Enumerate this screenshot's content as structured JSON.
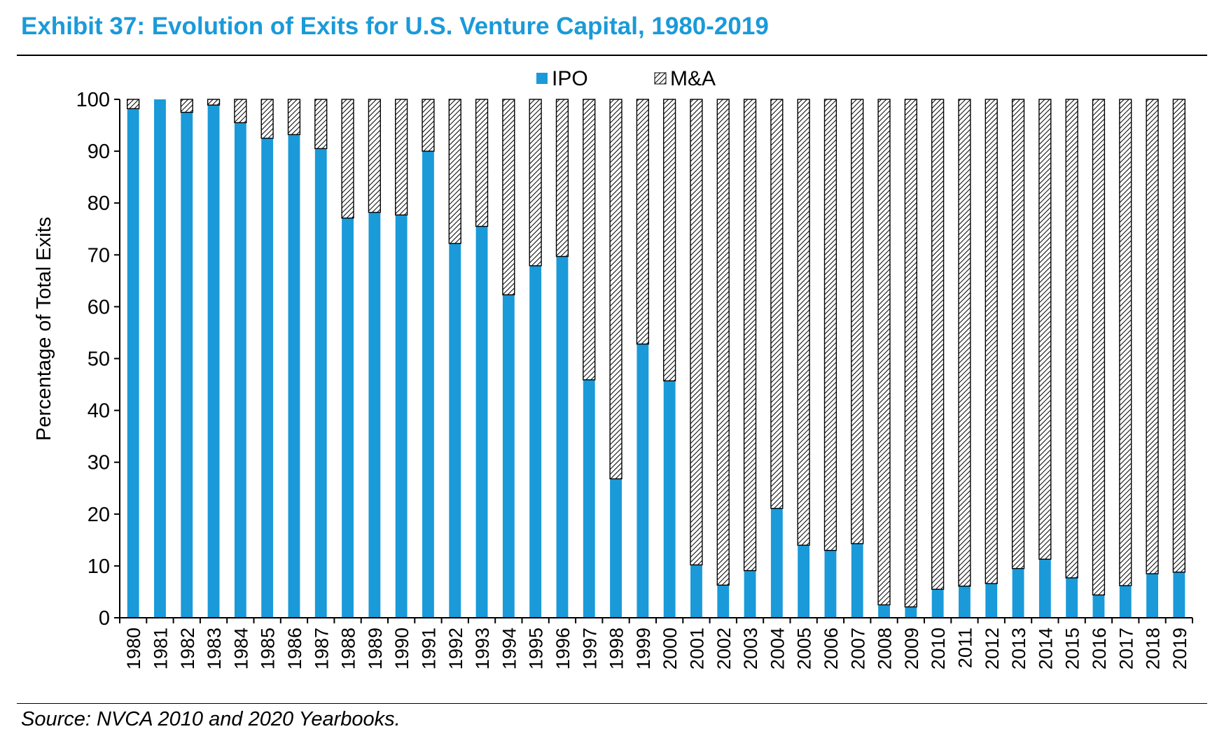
{
  "header": {
    "title": "Exhibit 37: Evolution of Exits for U.S. Venture Capital, 1980-2019"
  },
  "footer": {
    "source": "Source: NVCA 2010 and 2020 Yearbooks."
  },
  "colors": {
    "ipo": "#1a9ad9",
    "ma_hatch": "#000000",
    "title": "#1a9ad9"
  },
  "chart_data": {
    "type": "bar",
    "stacked": true,
    "title": "",
    "xlabel": "",
    "ylabel": "Percentage of Total Exits",
    "ylim": [
      0,
      100
    ],
    "yticks": [
      0,
      10,
      20,
      30,
      40,
      50,
      60,
      70,
      80,
      90,
      100
    ],
    "legend_position": "top-center",
    "grid": false,
    "categories": [
      "1980",
      "1981",
      "1982",
      "1983",
      "1984",
      "1985",
      "1986",
      "1987",
      "1988",
      "1989",
      "1990",
      "1991",
      "1992",
      "1993",
      "1994",
      "1995",
      "1996",
      "1997",
      "1998",
      "1999",
      "2000",
      "2001",
      "2002",
      "2003",
      "2004",
      "2005",
      "2006",
      "2007",
      "2008",
      "2009",
      "2010",
      "2011",
      "2012",
      "2013",
      "2014",
      "2015",
      "2016",
      "2017",
      "2018",
      "2019"
    ],
    "series": [
      {
        "name": "IPO",
        "fill": "solid",
        "values": [
          98.2,
          100,
          97.5,
          98.9,
          95.5,
          92.5,
          93.2,
          90.5,
          77.1,
          78.2,
          77.7,
          90.0,
          72.2,
          75.5,
          62.3,
          67.9,
          69.7,
          45.9,
          26.8,
          52.8,
          45.7,
          10.2,
          6.3,
          9.1,
          21.1,
          14.0,
          13.0,
          14.3,
          2.5,
          2.1,
          5.5,
          6.1,
          6.6,
          9.5,
          11.3,
          7.7,
          4.4,
          6.2,
          8.5,
          8.8
        ]
      },
      {
        "name": "M&A",
        "fill": "hatched",
        "values": [
          1.8,
          0,
          2.5,
          1.1,
          4.5,
          7.5,
          6.8,
          9.5,
          22.9,
          21.8,
          22.3,
          10.0,
          27.8,
          24.5,
          37.7,
          32.1,
          30.3,
          54.1,
          73.2,
          47.2,
          54.3,
          89.8,
          93.7,
          90.9,
          78.9,
          86.0,
          87.0,
          85.7,
          97.5,
          97.9,
          94.5,
          93.9,
          93.4,
          90.5,
          88.7,
          92.3,
          95.6,
          93.8,
          91.5,
          91.2
        ]
      }
    ]
  }
}
